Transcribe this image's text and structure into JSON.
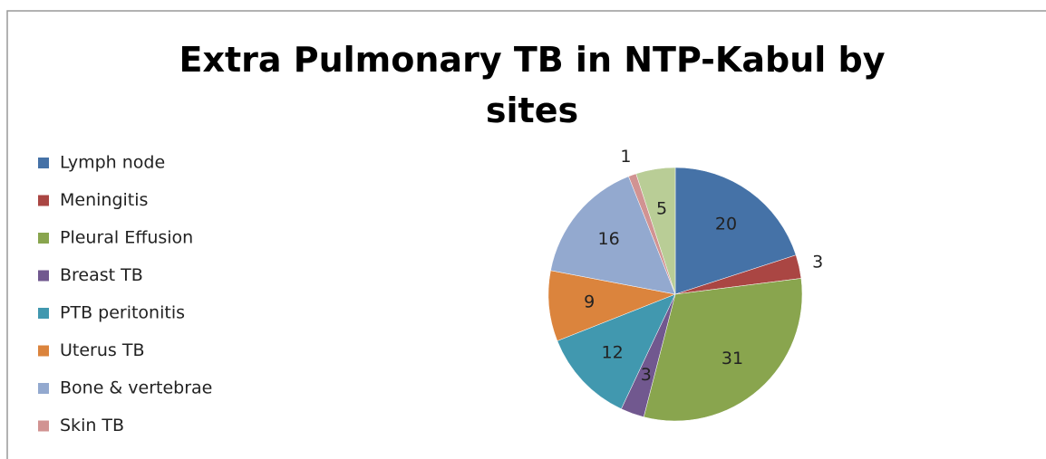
{
  "chart_data": {
    "type": "pie",
    "title": "Extra Pulmonary TB in NTP-Kabul by sites",
    "categories": [
      "Lymph node",
      "Meningitis",
      "Pleural Effusion",
      "Breast TB",
      "PTB peritonitis",
      "Uterus TB",
      "Bone & vertebrae",
      "Skin TB",
      null
    ],
    "values": [
      20,
      3,
      31,
      3,
      12,
      9,
      16,
      1,
      5
    ],
    "colors": [
      "#4572a7",
      "#aa4643",
      "#89a54e",
      "#71588f",
      "#4198af",
      "#db843d",
      "#93a9cf",
      "#d19392",
      "#b9cd96"
    ],
    "legend": "left"
  }
}
